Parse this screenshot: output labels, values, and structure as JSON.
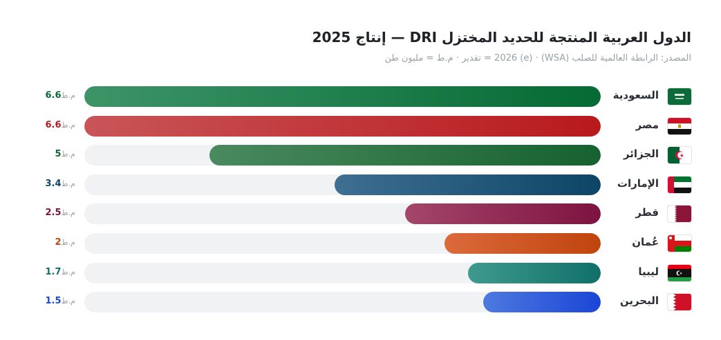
{
  "title": "الدول العربية المنتجة للحديد المختزل DRI — إنتاج 2025",
  "subtitle": "المصدر: الرابطة العالمية للصلب (WSA) · (e) 2026 = تقدير · م.ط = مليون طن",
  "unit": "م.ط",
  "chart_data": {
    "type": "bar",
    "orientation": "horizontal",
    "title": "الدول العربية المنتجة للحديد المختزل DRI — إنتاج 2025",
    "xlim": [
      0,
      6.6
    ],
    "categories": [
      "السعودية",
      "مصر",
      "الجزائر",
      "الإمارات",
      "قطر",
      "عُمان",
      "ليبيا",
      "البحرين"
    ],
    "values": [
      6.6,
      6.6,
      5,
      3.4,
      2.5,
      2,
      1.7,
      1.5
    ],
    "labels": [
      "6.6",
      "6.6",
      "5",
      "3.4",
      "2.5",
      "2",
      "1.7",
      "1.5"
    ],
    "colors": [
      [
        "#3d9467",
        "#056a34"
      ],
      [
        "#c95558",
        "#b8191c"
      ],
      [
        "#4a8a5e",
        "#16612f"
      ],
      [
        "#3f6f93",
        "#0c4566"
      ],
      [
        "#a5466a",
        "#7d1340"
      ],
      [
        "#db6a3c",
        "#c0440d"
      ],
      [
        "#3f9a8e",
        "#107069"
      ],
      [
        "#4e79e0",
        "#1a46d6"
      ]
    ],
    "value_colors": [
      "#0b6a37",
      "#b8191c",
      "#16612f",
      "#0c4566",
      "#7d1340",
      "#c0440d",
      "#107069",
      "#1a46d6"
    ],
    "flags": [
      "flag-saudi-arabia",
      "flag-egypt",
      "flag-algeria",
      "flag-uae",
      "flag-qatar",
      "flag-oman",
      "flag-libya",
      "flag-bahrain"
    ]
  }
}
